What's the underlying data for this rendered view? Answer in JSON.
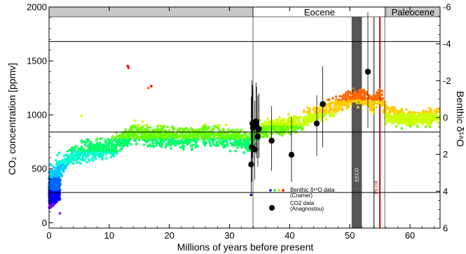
{
  "chart_data": {
    "type": "scatter",
    "xlabel": "Millions of years before present",
    "ylabel_left": "CO₂ concentration [ppmv]",
    "ylabel_right": "Benthic δ¹⁸O",
    "xlim": [
      0,
      65
    ],
    "ylim_left": [
      -50,
      2000
    ],
    "ylim_right": [
      6,
      -6
    ],
    "x_ticks": [
      0,
      10,
      20,
      30,
      40,
      50,
      60
    ],
    "y_left_ticks": [
      0,
      500,
      1000,
      1500,
      2000
    ],
    "y_right_ticks": [
      -6,
      -4,
      -2,
      0,
      2,
      4,
      6
    ],
    "epochs": [
      {
        "name": "",
        "start": 0,
        "end": 33.9,
        "color": "#c8c8c8"
      },
      {
        "name": "Eocene",
        "start": 33.9,
        "end": 56,
        "color": "#ffffff"
      },
      {
        "name": "Paleocene",
        "start": 56,
        "end": 65,
        "color": "#c8c8c8"
      }
    ],
    "events": [
      {
        "label": "EECO",
        "start": 50.3,
        "end": 52.0,
        "color": "#555555",
        "text_color": "#ffffff"
      },
      {
        "label": "PETM",
        "at": 55,
        "color": "#d00000",
        "text_color": "#d00000"
      },
      {
        "label": "ETM2-ETM3",
        "at": 54.0,
        "color": "#777777",
        "text_color": "#ffffff"
      }
    ],
    "reference_lines_left": [
      1680,
      840,
      280
    ],
    "reference_verticals": [
      33.9,
      55.8
    ],
    "series": [
      {
        "name": "Benthic δ¹⁸O data (Cramer)",
        "axis": "right",
        "palette": [
          "#7f00ff",
          "#0000ff",
          "#0066ff",
          "#00ccff",
          "#00ffcc",
          "#00ff66",
          "#66ff00",
          "#ccff00",
          "#ffcc00",
          "#ff6600",
          "#ff0000"
        ],
        "trend": [
          [
            0,
            3.4
          ],
          [
            0.5,
            3.7
          ],
          [
            1,
            3.4
          ],
          [
            2,
            2.8
          ],
          [
            3,
            2.2
          ],
          [
            4,
            2.0
          ],
          [
            5,
            1.9
          ],
          [
            6,
            1.8
          ],
          [
            8,
            1.8
          ],
          [
            10,
            1.6
          ],
          [
            12,
            1.3
          ],
          [
            14,
            0.8
          ],
          [
            16,
            0.9
          ],
          [
            18,
            1.0
          ],
          [
            20,
            1.1
          ],
          [
            22,
            1.0
          ],
          [
            24,
            1.1
          ],
          [
            26,
            0.9
          ],
          [
            28,
            1.0
          ],
          [
            30,
            1.1
          ],
          [
            32,
            1.2
          ],
          [
            33.5,
            1.3
          ],
          [
            34,
            0.9
          ],
          [
            36,
            0.6
          ],
          [
            38,
            0.5
          ],
          [
            40,
            0.4
          ],
          [
            42,
            0.2
          ],
          [
            44,
            -0.1
          ],
          [
            46,
            -0.4
          ],
          [
            48,
            -0.7
          ],
          [
            50,
            -1.0
          ],
          [
            52,
            -1.1
          ],
          [
            54,
            -0.7
          ],
          [
            55,
            -1.2
          ],
          [
            56,
            -0.2
          ],
          [
            58,
            0.0
          ],
          [
            60,
            0.1
          ],
          [
            62,
            0.0
          ],
          [
            65,
            -0.1
          ]
        ],
        "outliers": [
          [
            13.1,
            -2.8
          ],
          [
            13.2,
            -2.7
          ],
          [
            16.5,
            -1.6
          ],
          [
            17.0,
            -1.7
          ],
          [
            5.4,
            -0.1
          ],
          [
            33.6,
            4.2
          ],
          [
            1.8,
            5.2
          ]
        ]
      },
      {
        "name": "CO2 data (Anagnostou)",
        "axis": "left",
        "color": "#000000",
        "points": [
          {
            "x": 33.6,
            "y": 540,
            "lo": 250,
            "hi": 1170
          },
          {
            "x": 33.7,
            "y": 700,
            "lo": 380,
            "hi": 1320
          },
          {
            "x": 33.8,
            "y": 920,
            "lo": 600,
            "hi": 1280
          },
          {
            "x": 33.9,
            "y": 880,
            "lo": 560,
            "hi": 1240
          },
          {
            "x": 34.2,
            "y": 680,
            "lo": 400,
            "hi": 1130
          },
          {
            "x": 34.4,
            "y": 940,
            "lo": 640,
            "hi": 1300
          },
          {
            "x": 34.5,
            "y": 900,
            "lo": 600,
            "hi": 1260
          },
          {
            "x": 34.7,
            "y": 800,
            "lo": 520,
            "hi": 1180
          },
          {
            "x": 34.9,
            "y": 870,
            "lo": 600,
            "hi": 1200
          },
          {
            "x": 37.0,
            "y": 760,
            "lo": 480,
            "hi": 1080
          },
          {
            "x": 40.3,
            "y": 630,
            "lo": 380,
            "hi": 980
          },
          {
            "x": 44.5,
            "y": 920,
            "lo": 620,
            "hi": 1180
          },
          {
            "x": 45.5,
            "y": 1100,
            "lo": 700,
            "hi": 1450
          },
          {
            "x": 53.0,
            "y": 1400,
            "lo": 880,
            "hi": 1950
          }
        ]
      }
    ],
    "legend": {
      "position": "bottom-center",
      "entries": [
        {
          "label_line1": "Benthic δ¹⁸O data",
          "label_line2": "(Cramer)",
          "colors": [
            "#0000ff",
            "#00ff00",
            "#ffcc00",
            "#ff0000"
          ]
        },
        {
          "label_line1": "CO2 data",
          "label_line2": "(Anagnostou)",
          "color": "#000000"
        }
      ]
    }
  }
}
